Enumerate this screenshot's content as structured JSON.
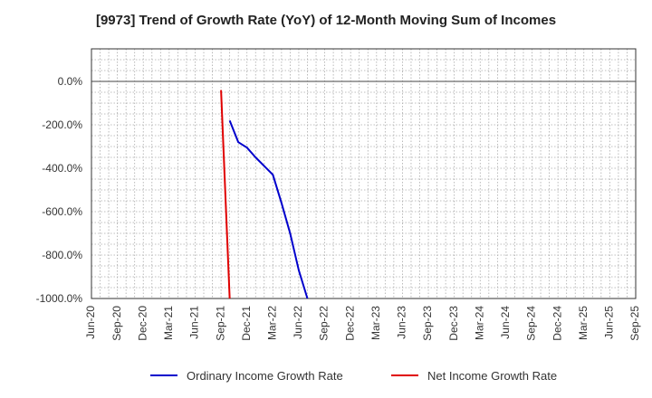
{
  "chart_data": {
    "type": "line",
    "title": "[9973]  Trend of Growth Rate (YoY) of 12-Month Moving Sum of Incomes",
    "xlabel": "",
    "ylabel": "",
    "ylim": [
      -1000,
      150
    ],
    "grid": true,
    "legend_position": "bottom",
    "x_ticks": [
      "Jun-20",
      "Sep-20",
      "Dec-20",
      "Mar-21",
      "Jun-21",
      "Sep-21",
      "Dec-21",
      "Mar-22",
      "Jun-22",
      "Sep-22",
      "Dec-22",
      "Mar-23",
      "Jun-23",
      "Sep-23",
      "Dec-23",
      "Mar-24",
      "Jun-24",
      "Sep-24",
      "Dec-24",
      "Mar-25",
      "Jun-25",
      "Sep-25"
    ],
    "y_ticks": [
      0,
      -200,
      -400,
      -600,
      -800,
      -1000
    ],
    "y_tick_labels": [
      "0.0%",
      "-200.0%",
      "-400.0%",
      "-600.0%",
      "-800.0%",
      "-1000.0%"
    ],
    "series": [
      {
        "name": "Ordinary Income Growth Rate",
        "color": "#0000cc",
        "points": [
          {
            "x": "Oct-21",
            "y": -180
          },
          {
            "x": "Nov-21",
            "y": -280
          },
          {
            "x": "Dec-21",
            "y": -305
          },
          {
            "x": "Jan-22",
            "y": -350
          },
          {
            "x": "Feb-22",
            "y": -390
          },
          {
            "x": "Mar-22",
            "y": -430
          },
          {
            "x": "Apr-22",
            "y": -560
          },
          {
            "x": "May-22",
            "y": -700
          },
          {
            "x": "Jun-22",
            "y": -870
          },
          {
            "x": "Jul-22",
            "y": -1000
          }
        ]
      },
      {
        "name": "Net Income Growth Rate",
        "color": "#e00000",
        "points": [
          {
            "x": "Sep-21",
            "y": -40
          },
          {
            "x": "Oct-21",
            "y": -1000
          }
        ]
      }
    ]
  }
}
